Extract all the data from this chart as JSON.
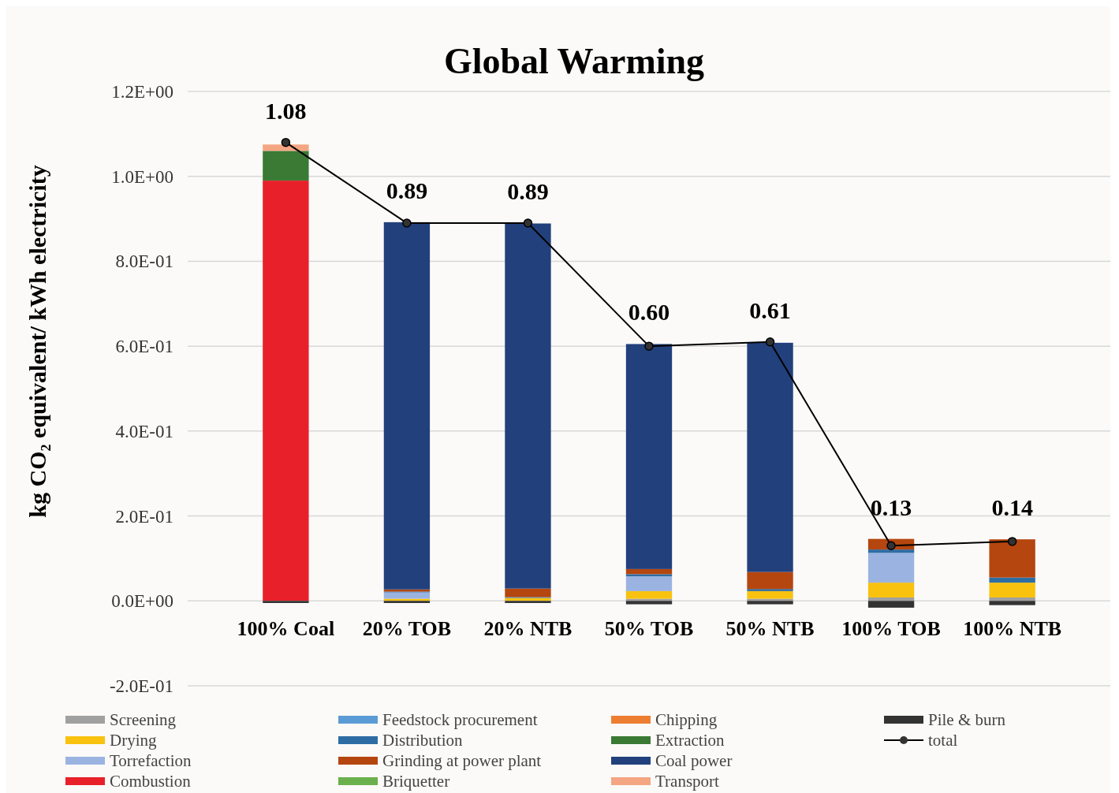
{
  "chart_data": {
    "type": "bar",
    "stacked": true,
    "title": "Global Warming",
    "ylabel": "kg CO₂ equivalent/ kWh electricity",
    "categories": [
      "100% Coal",
      "20% TOB",
      "20% NTB",
      "50% TOB",
      "50% NTB",
      "100% TOB",
      "100% NTB"
    ],
    "ylim": [
      -0.2,
      1.2
    ],
    "yticks": [
      {
        "value": -0.2,
        "label": "-2.0E-01"
      },
      {
        "value": 0,
        "label": "0.0E+00"
      },
      {
        "value": 0.2,
        "label": "2.0E-01"
      },
      {
        "value": 0.4,
        "label": "4.0E-01"
      },
      {
        "value": 0.6,
        "label": "6.0E-01"
      },
      {
        "value": 0.8,
        "label": "8.0E-01"
      },
      {
        "value": 1.0,
        "label": "1.0E+00"
      },
      {
        "value": 1.2,
        "label": "1.2E+00"
      }
    ],
    "grid": "y",
    "legend": "bottom",
    "series": [
      {
        "name": "Screening",
        "color": "#a0a0a0",
        "values": [
          0,
          null,
          null,
          0.005,
          0.005,
          0.008,
          0.008
        ]
      },
      {
        "name": "Drying",
        "color": "#f8c20f",
        "values": [
          0,
          0.005,
          0.007,
          0.018,
          0.018,
          0.035,
          0.035
        ]
      },
      {
        "name": "Torrefaction",
        "color": "#9bb3e0",
        "values": [
          0,
          0.015,
          0,
          0.035,
          0,
          0.07,
          0
        ]
      },
      {
        "name": "Combustion",
        "color": "#e8202a",
        "values": [
          0.99,
          0,
          0,
          0,
          0,
          0,
          0
        ]
      },
      {
        "name": "Feedstock procurement",
        "color": "#5b9bd5",
        "values": [
          0,
          0,
          0,
          0,
          0,
          0,
          0
        ]
      },
      {
        "name": "Distribution",
        "color": "#2e6da4",
        "values": [
          0,
          0.002,
          0.002,
          0.005,
          0.005,
          0.008,
          0.012
        ]
      },
      {
        "name": "Grinding at power plant",
        "color": "#b5460f",
        "values": [
          0,
          0.005,
          0.02,
          0.012,
          0.04,
          0.025,
          0.09
        ]
      },
      {
        "name": "Briquetter",
        "color": "#6ab04c",
        "values": [
          0,
          0,
          0,
          0,
          0,
          0,
          0
        ]
      },
      {
        "name": "Chipping",
        "color": "#ed7d31",
        "values": [
          0,
          0,
          0,
          0,
          0,
          0,
          0
        ]
      },
      {
        "name": "Extraction",
        "color": "#3a7a34",
        "values": [
          0.07,
          0,
          0,
          0,
          0,
          0,
          0
        ]
      },
      {
        "name": "Coal power",
        "color": "#22407c",
        "values": [
          0,
          0.865,
          0.86,
          0.53,
          0.54,
          0,
          0
        ]
      },
      {
        "name": "Transport",
        "color": "#f4a582",
        "values": [
          0.015,
          0,
          0,
          0,
          0,
          0,
          0
        ]
      },
      {
        "name": "Pile & burn",
        "color": "#333333",
        "values": [
          -0.005,
          -0.005,
          -0.005,
          -0.008,
          -0.008,
          -0.016,
          -0.01
        ]
      },
      {
        "name": "total",
        "type": "line",
        "color": "#000000",
        "marker": "circle",
        "values": [
          1.08,
          0.89,
          0.89,
          0.6,
          0.61,
          0.13,
          0.14
        ],
        "value_labels": [
          "1.08",
          "0.89",
          "0.89",
          "0.60",
          "0.61",
          "0.13",
          "0.14"
        ]
      }
    ]
  }
}
